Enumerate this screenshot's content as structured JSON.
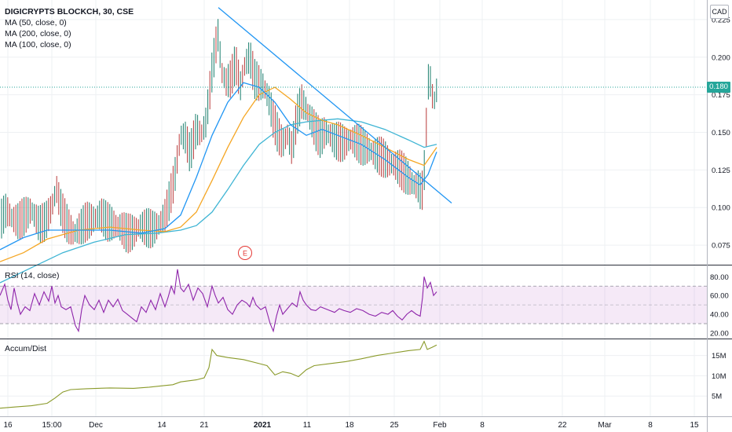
{
  "chart_data": {
    "type": "line",
    "header": {
      "symbol_line": "DIGICRYPTS BLOCKCH, 30, CSE",
      "ma_lines": [
        "MA (50, close, 0)",
        "MA (200, close, 0)",
        "MA (100, close, 0)"
      ],
      "currency": "CAD"
    },
    "last_price": {
      "label": "0.180",
      "value": 0.18
    },
    "x_ticks": [
      "16",
      "15:00",
      "Dec",
      "14",
      "21",
      "2021",
      "11",
      "18",
      "25",
      "Feb",
      "8",
      "22",
      "Mar",
      "8",
      "15"
    ],
    "earnings_marker": "E",
    "price_panel": {
      "y_ticks": [
        "0.225",
        "0.200",
        "0.175",
        "0.150",
        "0.125",
        "0.100",
        "0.075"
      ],
      "ylim": [
        0.062,
        0.238
      ],
      "close_path": [
        [
          0,
          0.09
        ],
        [
          8,
          0.098
        ],
        [
          16,
          0.092
        ],
        [
          24,
          0.09
        ],
        [
          32,
          0.094
        ],
        [
          40,
          0.098
        ],
        [
          50,
          0.088
        ],
        [
          58,
          0.09
        ],
        [
          66,
          0.1
        ],
        [
          72,
          0.112
        ],
        [
          78,
          0.098
        ],
        [
          86,
          0.088
        ],
        [
          94,
          0.082
        ],
        [
          102,
          0.086
        ],
        [
          110,
          0.09
        ],
        [
          120,
          0.092
        ],
        [
          128,
          0.095
        ],
        [
          136,
          0.09
        ],
        [
          146,
          0.088
        ],
        [
          154,
          0.086
        ],
        [
          162,
          0.082
        ],
        [
          170,
          0.083
        ],
        [
          178,
          0.087
        ],
        [
          186,
          0.086
        ],
        [
          194,
          0.085
        ],
        [
          202,
          0.088
        ],
        [
          210,
          0.094
        ],
        [
          216,
          0.105
        ],
        [
          222,
          0.118
        ],
        [
          226,
          0.133
        ],
        [
          230,
          0.148
        ],
        [
          236,
          0.146
        ],
        [
          242,
          0.135
        ],
        [
          250,
          0.152
        ],
        [
          256,
          0.148
        ],
        [
          262,
          0.156
        ],
        [
          266,
          0.172
        ],
        [
          270,
          0.19
        ],
        [
          274,
          0.205
        ],
        [
          278,
          0.215
        ],
        [
          282,
          0.19
        ],
        [
          288,
          0.183
        ],
        [
          294,
          0.185
        ],
        [
          300,
          0.196
        ],
        [
          306,
          0.18
        ],
        [
          312,
          0.195
        ],
        [
          318,
          0.2
        ],
        [
          324,
          0.185
        ],
        [
          330,
          0.182
        ],
        [
          336,
          0.18
        ],
        [
          342,
          0.172
        ],
        [
          348,
          0.158
        ],
        [
          354,
          0.148
        ],
        [
          360,
          0.142
        ],
        [
          366,
          0.148
        ],
        [
          372,
          0.138
        ],
        [
          378,
          0.16
        ],
        [
          384,
          0.17
        ],
        [
          390,
          0.165
        ],
        [
          396,
          0.158
        ],
        [
          402,
          0.15
        ],
        [
          408,
          0.145
        ],
        [
          414,
          0.15
        ],
        [
          420,
          0.148
        ],
        [
          426,
          0.144
        ],
        [
          432,
          0.143
        ],
        [
          438,
          0.142
        ],
        [
          446,
          0.145
        ],
        [
          454,
          0.143
        ],
        [
          462,
          0.14
        ],
        [
          470,
          0.138
        ],
        [
          478,
          0.135
        ],
        [
          486,
          0.133
        ],
        [
          494,
          0.13
        ],
        [
          502,
          0.128
        ],
        [
          510,
          0.125
        ],
        [
          518,
          0.12
        ],
        [
          526,
          0.115
        ],
        [
          532,
          0.114
        ],
        [
          537,
          0.108
        ],
        [
          540,
          0.122
        ],
        [
          543,
          0.155
        ],
        [
          546,
          0.19
        ],
        [
          549,
          0.18
        ],
        [
          552,
          0.168
        ],
        [
          556,
          0.178
        ]
      ],
      "ma_50": [
        [
          0,
          0.072
        ],
        [
          30,
          0.08
        ],
        [
          60,
          0.085
        ],
        [
          100,
          0.085
        ],
        [
          140,
          0.085
        ],
        [
          180,
          0.083
        ],
        [
          210,
          0.086
        ],
        [
          230,
          0.095
        ],
        [
          250,
          0.12
        ],
        [
          270,
          0.148
        ],
        [
          290,
          0.17
        ],
        [
          310,
          0.183
        ],
        [
          330,
          0.18
        ],
        [
          350,
          0.17
        ],
        [
          370,
          0.155
        ],
        [
          390,
          0.148
        ],
        [
          410,
          0.152
        ],
        [
          430,
          0.148
        ],
        [
          460,
          0.142
        ],
        [
          490,
          0.132
        ],
        [
          520,
          0.12
        ],
        [
          535,
          0.115
        ],
        [
          545,
          0.122
        ],
        [
          556,
          0.137
        ]
      ],
      "ma_100": [
        [
          0,
          0.064
        ],
        [
          30,
          0.07
        ],
        [
          60,
          0.079
        ],
        [
          100,
          0.085
        ],
        [
          140,
          0.087
        ],
        [
          180,
          0.085
        ],
        [
          210,
          0.084
        ],
        [
          230,
          0.087
        ],
        [
          250,
          0.097
        ],
        [
          270,
          0.118
        ],
        [
          290,
          0.14
        ],
        [
          310,
          0.16
        ],
        [
          330,
          0.175
        ],
        [
          350,
          0.18
        ],
        [
          370,
          0.172
        ],
        [
          390,
          0.163
        ],
        [
          410,
          0.158
        ],
        [
          430,
          0.155
        ],
        [
          460,
          0.148
        ],
        [
          490,
          0.14
        ],
        [
          520,
          0.132
        ],
        [
          540,
          0.128
        ],
        [
          556,
          0.14
        ]
      ],
      "ma_200": [
        [
          0,
          0.05
        ],
        [
          40,
          0.06
        ],
        [
          80,
          0.07
        ],
        [
          120,
          0.077
        ],
        [
          160,
          0.082
        ],
        [
          200,
          0.083
        ],
        [
          230,
          0.085
        ],
        [
          250,
          0.088
        ],
        [
          270,
          0.097
        ],
        [
          290,
          0.112
        ],
        [
          310,
          0.128
        ],
        [
          330,
          0.142
        ],
        [
          350,
          0.15
        ],
        [
          370,
          0.155
        ],
        [
          390,
          0.157
        ],
        [
          410,
          0.158
        ],
        [
          430,
          0.159
        ],
        [
          460,
          0.157
        ],
        [
          490,
          0.152
        ],
        [
          520,
          0.145
        ],
        [
          540,
          0.14
        ],
        [
          556,
          0.142
        ]
      ],
      "trendline": [
        [
          278,
          0.233
        ],
        [
          575,
          0.103
        ]
      ]
    },
    "rsi_panel": {
      "label": "RSI (14, close)",
      "y_ticks": [
        "80.00",
        "60.00",
        "40.00",
        "20.00"
      ],
      "ylim": [
        15,
        92
      ],
      "bands": [
        30,
        70
      ],
      "line": [
        [
          0,
          60
        ],
        [
          6,
          72
        ],
        [
          10,
          55
        ],
        [
          14,
          45
        ],
        [
          18,
          68
        ],
        [
          22,
          52
        ],
        [
          26,
          40
        ],
        [
          32,
          48
        ],
        [
          38,
          44
        ],
        [
          44,
          62
        ],
        [
          50,
          50
        ],
        [
          56,
          64
        ],
        [
          62,
          54
        ],
        [
          66,
          70
        ],
        [
          70,
          52
        ],
        [
          74,
          60
        ],
        [
          78,
          48
        ],
        [
          84,
          45
        ],
        [
          90,
          48
        ],
        [
          96,
          28
        ],
        [
          100,
          22
        ],
        [
          104,
          45
        ],
        [
          108,
          60
        ],
        [
          114,
          50
        ],
        [
          120,
          45
        ],
        [
          126,
          55
        ],
        [
          132,
          42
        ],
        [
          138,
          55
        ],
        [
          144,
          48
        ],
        [
          150,
          56
        ],
        [
          156,
          44
        ],
        [
          162,
          40
        ],
        [
          168,
          36
        ],
        [
          174,
          32
        ],
        [
          180,
          48
        ],
        [
          186,
          42
        ],
        [
          192,
          55
        ],
        [
          198,
          45
        ],
        [
          204,
          62
        ],
        [
          210,
          48
        ],
        [
          214,
          58
        ],
        [
          218,
          70
        ],
        [
          222,
          62
        ],
        [
          226,
          88
        ],
        [
          230,
          68
        ],
        [
          234,
          64
        ],
        [
          240,
          72
        ],
        [
          246,
          55
        ],
        [
          252,
          68
        ],
        [
          258,
          62
        ],
        [
          264,
          48
        ],
        [
          270,
          70
        ],
        [
          274,
          60
        ],
        [
          278,
          52
        ],
        [
          284,
          58
        ],
        [
          290,
          45
        ],
        [
          296,
          40
        ],
        [
          302,
          50
        ],
        [
          308,
          55
        ],
        [
          314,
          52
        ],
        [
          318,
          48
        ],
        [
          322,
          58
        ],
        [
          326,
          50
        ],
        [
          332,
          45
        ],
        [
          338,
          48
        ],
        [
          344,
          30
        ],
        [
          348,
          22
        ],
        [
          352,
          38
        ],
        [
          356,
          50
        ],
        [
          360,
          40
        ],
        [
          366,
          46
        ],
        [
          372,
          52
        ],
        [
          378,
          48
        ],
        [
          382,
          64
        ],
        [
          386,
          55
        ],
        [
          390,
          50
        ],
        [
          396,
          45
        ],
        [
          402,
          44
        ],
        [
          408,
          48
        ],
        [
          414,
          46
        ],
        [
          420,
          44
        ],
        [
          426,
          42
        ],
        [
          432,
          46
        ],
        [
          438,
          44
        ],
        [
          446,
          42
        ],
        [
          454,
          46
        ],
        [
          462,
          44
        ],
        [
          470,
          40
        ],
        [
          478,
          38
        ],
        [
          486,
          42
        ],
        [
          494,
          40
        ],
        [
          500,
          44
        ],
        [
          506,
          38
        ],
        [
          512,
          34
        ],
        [
          518,
          40
        ],
        [
          524,
          44
        ],
        [
          530,
          40
        ],
        [
          535,
          38
        ],
        [
          538,
          58
        ],
        [
          540,
          80
        ],
        [
          544,
          68
        ],
        [
          548,
          74
        ],
        [
          552,
          60
        ],
        [
          556,
          64
        ]
      ]
    },
    "ad_panel": {
      "label": "Accum/Dist",
      "y_ticks": [
        "15M",
        "10M",
        "5M"
      ],
      "ylim": [
        0,
        19
      ],
      "line": [
        [
          0,
          2
        ],
        [
          20,
          2.3
        ],
        [
          40,
          2.6
        ],
        [
          60,
          3.2
        ],
        [
          70,
          4.5
        ],
        [
          80,
          6
        ],
        [
          90,
          6.6
        ],
        [
          110,
          6.8
        ],
        [
          140,
          7
        ],
        [
          170,
          6.9
        ],
        [
          190,
          7.2
        ],
        [
          210,
          7.6
        ],
        [
          220,
          7.8
        ],
        [
          230,
          8.5
        ],
        [
          250,
          9
        ],
        [
          260,
          9.5
        ],
        [
          266,
          12
        ],
        [
          270,
          16.5
        ],
        [
          276,
          15
        ],
        [
          290,
          14.5
        ],
        [
          310,
          14
        ],
        [
          330,
          13
        ],
        [
          340,
          12.5
        ],
        [
          350,
          10.2
        ],
        [
          360,
          11
        ],
        [
          370,
          10.6
        ],
        [
          380,
          9.8
        ],
        [
          390,
          11.5
        ],
        [
          400,
          12.5
        ],
        [
          420,
          13
        ],
        [
          440,
          13.5
        ],
        [
          460,
          14.2
        ],
        [
          480,
          15
        ],
        [
          500,
          15.6
        ],
        [
          520,
          16.2
        ],
        [
          535,
          16.5
        ],
        [
          540,
          18.5
        ],
        [
          544,
          16.5
        ],
        [
          550,
          17
        ],
        [
          556,
          17.6
        ]
      ]
    }
  }
}
